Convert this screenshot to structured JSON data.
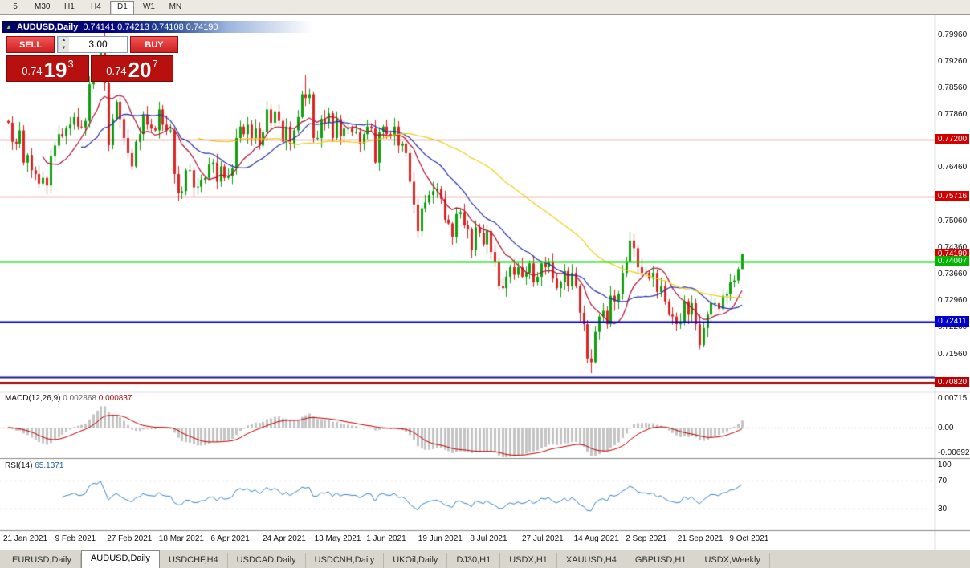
{
  "toolbar": {
    "timeframes": [
      "5",
      "M30",
      "H1",
      "H4",
      "D1",
      "W1",
      "MN"
    ],
    "active_timeframe": "D1"
  },
  "chart": {
    "symbol": "AUDUSD,Daily",
    "ohlc_line": "0.74141 0.74213 0.74108 0.74190"
  },
  "trade_panel": {
    "sell_label": "SELL",
    "buy_label": "BUY",
    "lot_size": "3.00",
    "sell_price": {
      "prefix": "0.74",
      "big": "19",
      "sup": "3"
    },
    "buy_price": {
      "prefix": "0.74",
      "big": "20",
      "sup": "7"
    }
  },
  "price_axis": {
    "labels": [
      {
        "text": "0.79960",
        "value": 0.7996
      },
      {
        "text": "0.79260",
        "value": 0.7926
      },
      {
        "text": "0.78560",
        "value": 0.7856
      },
      {
        "text": "0.77860",
        "value": 0.7786
      },
      {
        "text": "0.76460",
        "value": 0.7646
      },
      {
        "text": "0.75060",
        "value": 0.7506
      },
      {
        "text": "0.74360",
        "value": 0.7436
      },
      {
        "text": "0.73660",
        "value": 0.7366
      },
      {
        "text": "0.72960",
        "value": 0.7296
      },
      {
        "text": "0.72260",
        "value": 0.7226
      },
      {
        "text": "0.71560",
        "value": 0.7156
      }
    ],
    "tags": [
      {
        "text": "0.77200",
        "value": 0.772,
        "bg": "#d40000"
      },
      {
        "text": "0.75716",
        "value": 0.75716,
        "bg": "#d40000"
      },
      {
        "text": "0.74190",
        "value": 0.7419,
        "bg": "#d40000"
      },
      {
        "text": "0.74007",
        "value": 0.74007,
        "bg": "#00b400"
      },
      {
        "text": "0.72411",
        "value": 0.72411,
        "bg": "#0000cd"
      },
      {
        "text": "0.70820",
        "value": 0.7082,
        "bg": "#c00000"
      }
    ]
  },
  "date_axis": [
    "21 Jan 2021",
    "9 Feb 2021",
    "27 Feb 2021",
    "18 Mar 2021",
    "6 Apr 2021",
    "24 Apr 2021",
    "13 May 2021",
    "1 Jun 2021",
    "19 Jun 2021",
    "8 Jul 2021",
    "27 Jul 2021",
    "14 Aug 2021",
    "2 Sep 2021",
    "21 Sep 2021",
    "9 Oct 2021"
  ],
  "indicators": {
    "macd": {
      "label": "MACD(12,26,9)",
      "value_main": "0.002868",
      "value_signal": "0.000837",
      "axis_labels": [
        {
          "text": "0.00715",
          "value": 0.00715
        },
        {
          "text": "0.00",
          "value": 0
        },
        {
          "text": "-0.00692",
          "value": -0.00692
        }
      ]
    },
    "rsi": {
      "label": "RSI(14)",
      "value": "65.1371",
      "axis_labels": [
        {
          "text": "100",
          "value": 100
        },
        {
          "text": "70",
          "value": 70
        },
        {
          "text": "30",
          "value": 30
        }
      ],
      "levels": [
        70,
        30
      ]
    }
  },
  "chart_data": {
    "type": "candlestick",
    "symbol": "AUDUSD",
    "timeframe": "Daily",
    "ylim": [
      0.706,
      0.805
    ],
    "first_open": 0.777,
    "closes": [
      0.7765,
      0.7715,
      0.771,
      0.7745,
      0.766,
      0.768,
      0.764,
      0.763,
      0.7605,
      0.762,
      0.76,
      0.7677,
      0.7705,
      0.7735,
      0.773,
      0.775,
      0.776,
      0.778,
      0.7755,
      0.7753,
      0.777,
      0.7866,
      0.7915,
      0.791,
      0.7965,
      0.787,
      0.7706,
      0.7775,
      0.782,
      0.7775,
      0.7725,
      0.7685,
      0.765,
      0.7715,
      0.7735,
      0.7785,
      0.776,
      0.775,
      0.7745,
      0.78,
      0.776,
      0.7745,
      0.7745,
      0.763,
      0.758,
      0.7585,
      0.764,
      0.764,
      0.7595,
      0.7597,
      0.7615,
      0.762,
      0.7655,
      0.766,
      0.761,
      0.765,
      0.762,
      0.7625,
      0.7645,
      0.7725,
      0.7755,
      0.7735,
      0.776,
      0.7725,
      0.775,
      0.7705,
      0.774,
      0.78,
      0.7765,
      0.7795,
      0.777,
      0.7715,
      0.7755,
      0.771,
      0.7745,
      0.778,
      0.784,
      0.783,
      0.784,
      0.7725,
      0.7725,
      0.7775,
      0.7765,
      0.779,
      0.7725,
      0.7775,
      0.773,
      0.775,
      0.775,
      0.774,
      0.774,
      0.771,
      0.7735,
      0.7755,
      0.775,
      0.766,
      0.774,
      0.7755,
      0.7735,
      0.773,
      0.7755,
      0.7705,
      0.771,
      0.7685,
      0.761,
      0.755,
      0.748,
      0.754,
      0.7555,
      0.7575,
      0.7585,
      0.759,
      0.7565,
      0.751,
      0.75,
      0.7465,
      0.7525,
      0.753,
      0.7495,
      0.7485,
      0.743,
      0.749,
      0.7475,
      0.7445,
      0.748,
      0.7425,
      0.74,
      0.7335,
      0.733,
      0.736,
      0.7385,
      0.7365,
      0.7385,
      0.736,
      0.737,
      0.7395,
      0.7345,
      0.736,
      0.7395,
      0.7385,
      0.74,
      0.7355,
      0.733,
      0.7345,
      0.7375,
      0.7335,
      0.737,
      0.7335,
      0.7265,
      0.7235,
      0.7145,
      0.7135,
      0.7215,
      0.7255,
      0.727,
      0.7235,
      0.731,
      0.7295,
      0.7315,
      0.737,
      0.74,
      0.7455,
      0.7435,
      0.7385,
      0.737,
      0.737,
      0.7355,
      0.737,
      0.732,
      0.7335,
      0.7295,
      0.726,
      0.7255,
      0.7235,
      0.724,
      0.7295,
      0.726,
      0.729,
      0.7235,
      0.718,
      0.7225,
      0.726,
      0.729,
      0.729,
      0.7275,
      0.731,
      0.7315,
      0.7345,
      0.735,
      0.738,
      0.7419
    ],
    "wick_overrides": {
      "25": {
        "high": 0.8005
      },
      "77": {
        "high": 0.7891
      },
      "151": {
        "low": 0.7106
      },
      "161": {
        "high": 0.7478
      },
      "190": {
        "high": 0.74213,
        "low": 0.7405
      }
    },
    "candle_up_color": "#0f9e0f",
    "candle_down_color": "#dd2222",
    "moving_averages": [
      {
        "period": 10,
        "color": "#b01030"
      },
      {
        "period": 20,
        "color": "#2233aa"
      },
      {
        "period": 50,
        "color": "#ecd018"
      }
    ],
    "hlines": [
      {
        "value": 0.772,
        "color": "#e00000",
        "width": 1
      },
      {
        "value": 0.75716,
        "color": "#e00000",
        "width": 1
      },
      {
        "value": 0.74007,
        "color": "#00dd00",
        "width": 2
      },
      {
        "value": 0.72411,
        "color": "#0000cd",
        "width": 2
      },
      {
        "value": 0.7096,
        "color": "#1a1a8c",
        "width": 2
      },
      {
        "value": 0.7082,
        "color": "#aa0000",
        "width": 3
      }
    ],
    "macd": {
      "fast": 12,
      "slow": 26,
      "signal": 9,
      "ylim": [
        -0.0068,
        0.0078
      ],
      "hist_color": "#c4c4c4",
      "signal_color": "#c00000"
    },
    "rsi": {
      "period": 14,
      "color": "#3a86c8",
      "ylim": [
        0,
        100
      ]
    }
  },
  "tabs": {
    "items": [
      "EURUSD,Daily",
      "AUDUSD,Daily",
      "USDCHF,H4",
      "USDCAD,Daily",
      "USDCNH,Daily",
      "UKOil,Daily",
      "DJ30,H1",
      "USDX,H1",
      "XAUUSD,H4",
      "GBPUSD,H1",
      "USDX,Weekly"
    ],
    "active": "AUDUSD,Daily"
  }
}
